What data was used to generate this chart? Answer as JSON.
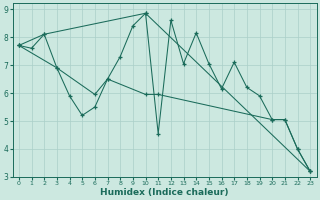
{
  "xlabel": "Humidex (Indice chaleur)",
  "bg_color": "#cce8e0",
  "grid_color": "#aacfc8",
  "line_color": "#1a6b5a",
  "xlim": [
    -0.5,
    23.5
  ],
  "ylim": [
    3,
    9.2
  ],
  "xticks": [
    0,
    1,
    2,
    3,
    4,
    5,
    6,
    7,
    8,
    9,
    10,
    11,
    12,
    13,
    14,
    15,
    16,
    17,
    18,
    19,
    20,
    21,
    22,
    23
  ],
  "yticks": [
    3,
    4,
    5,
    6,
    7,
    8,
    9
  ],
  "line1_x": [
    0,
    1,
    2,
    3,
    4,
    5,
    6,
    7,
    8,
    9,
    10,
    11,
    12,
    13,
    14,
    15,
    16,
    17,
    18,
    19,
    20,
    21,
    22,
    23
  ],
  "line1_y": [
    7.7,
    7.6,
    8.1,
    6.9,
    5.9,
    5.2,
    5.5,
    6.5,
    7.3,
    8.4,
    8.85,
    4.55,
    8.6,
    7.05,
    8.15,
    7.05,
    6.15,
    7.1,
    6.2,
    5.9,
    5.05,
    5.05,
    4.0,
    3.2
  ],
  "line2_x": [
    0,
    2,
    10,
    23
  ],
  "line2_y": [
    7.7,
    8.1,
    8.85,
    3.2
  ],
  "line3_x": [
    0,
    3,
    6,
    7,
    10,
    11,
    20,
    21,
    22,
    23
  ],
  "line3_y": [
    7.7,
    6.9,
    5.95,
    6.5,
    5.95,
    5.95,
    5.05,
    5.05,
    4.0,
    3.2
  ]
}
